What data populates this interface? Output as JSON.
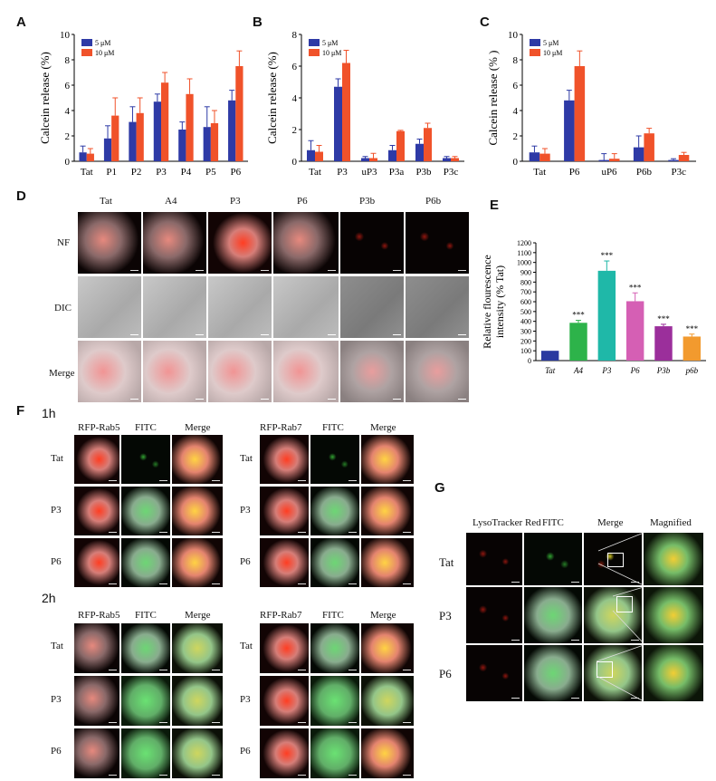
{
  "panels": {
    "A": "A",
    "B": "B",
    "C": "C",
    "D": "D",
    "E": "E",
    "F": "F",
    "G": "G"
  },
  "colors": {
    "series_5uM": "#2e3aa6",
    "series_10uM": "#f0522a"
  },
  "chart_data": [
    {
      "panel": "A",
      "type": "bar",
      "ylabel": "Calcein release (%)",
      "ylim": [
        0,
        10
      ],
      "yticks": [
        "0",
        "2",
        "4",
        "6",
        "8",
        "10"
      ],
      "categories": [
        "Tat",
        "P1",
        "P2",
        "P3",
        "P4",
        "P5",
        "P6"
      ],
      "series": [
        {
          "name": "5 μM",
          "values": [
            0.7,
            1.8,
            3.1,
            4.7,
            2.5,
            2.7,
            4.8
          ],
          "errors": [
            0.5,
            1.0,
            1.2,
            0.6,
            0.6,
            1.6,
            0.8
          ]
        },
        {
          "name": "10 μM",
          "values": [
            0.6,
            3.6,
            3.8,
            6.2,
            5.3,
            3.0,
            7.5
          ],
          "errors": [
            0.4,
            1.4,
            1.2,
            0.8,
            1.2,
            1.0,
            1.2
          ]
        }
      ],
      "legend_position": "top-left"
    },
    {
      "panel": "B",
      "type": "bar",
      "ylabel": "Calcein release (%)",
      "ylim": [
        0,
        8
      ],
      "yticks": [
        "0",
        "2",
        "4",
        "6",
        "8"
      ],
      "categories": [
        "Tat",
        "P3",
        "uP3",
        "P3a",
        "P3b",
        "P3c"
      ],
      "series": [
        {
          "name": "5 μM",
          "values": [
            0.7,
            4.7,
            0.2,
            0.7,
            1.1,
            0.2
          ],
          "errors": [
            0.6,
            0.5,
            0.1,
            0.3,
            0.3,
            0.1
          ]
        },
        {
          "name": "10 μM",
          "values": [
            0.6,
            6.2,
            0.2,
            1.9,
            2.1,
            0.2
          ],
          "errors": [
            0.4,
            0.8,
            0.3,
            0.05,
            0.3,
            0.1
          ]
        }
      ],
      "legend_position": "top-left"
    },
    {
      "panel": "C",
      "type": "bar",
      "ylabel": "Calcein release (% )",
      "ylim": [
        0,
        10
      ],
      "yticks": [
        "0",
        "2",
        "4",
        "6",
        "8",
        "10"
      ],
      "categories": [
        "Tat",
        "P6",
        "uP6",
        "P6b",
        "P3c"
      ],
      "series": [
        {
          "name": "5 μM",
          "values": [
            0.7,
            4.8,
            0.1,
            1.1,
            0.1
          ],
          "errors": [
            0.5,
            0.8,
            0.5,
            0.9,
            0.1
          ]
        },
        {
          "name": "10 μM",
          "values": [
            0.6,
            7.5,
            0.2,
            2.2,
            0.5
          ],
          "errors": [
            0.4,
            1.2,
            0.4,
            0.4,
            0.2
          ]
        }
      ],
      "legend_position": "top-left"
    },
    {
      "panel": "E",
      "type": "bar",
      "ylabel_lines": [
        "Relative flourescence",
        "intensity (% Tat)"
      ],
      "ylim": [
        0,
        1200
      ],
      "yticks": [
        "0",
        "100",
        "200",
        "300",
        "400",
        "500",
        "600",
        "700",
        "800",
        "900",
        "1000",
        "1100",
        "1200"
      ],
      "categories": [
        "Tat",
        "A4",
        "P3",
        "P6",
        "P3b",
        "p6b"
      ],
      "values": [
        100,
        385,
        915,
        605,
        350,
        245
      ],
      "errors": [
        0,
        25,
        100,
        85,
        20,
        25
      ],
      "significance": [
        "",
        "***",
        "***",
        "***",
        "***",
        "***"
      ],
      "bar_colors": [
        "#2b3aa0",
        "#2db34a",
        "#1fb8a8",
        "#d55fb4",
        "#9b2f9b",
        "#f29a2e"
      ]
    }
  ],
  "panelD": {
    "columns": [
      "Tat",
      "A4",
      "P3",
      "P6",
      "P3b",
      "P6b"
    ],
    "rows": [
      "NF",
      "DIC",
      "Merge"
    ]
  },
  "panelF": {
    "time_1h": "1h",
    "time_2h": "2h",
    "left_headers": [
      "RFP-Rab5",
      "FITC",
      "Merge"
    ],
    "right_headers": [
      "RFP-Rab7",
      "FITC",
      "Merge"
    ],
    "rows": [
      "Tat",
      "P3",
      "P6"
    ]
  },
  "panelG": {
    "headers": [
      "LysoTracker Red",
      "FITC",
      "Merge",
      "Magnified"
    ],
    "rows": [
      "Tat",
      "P3",
      "P6"
    ]
  }
}
